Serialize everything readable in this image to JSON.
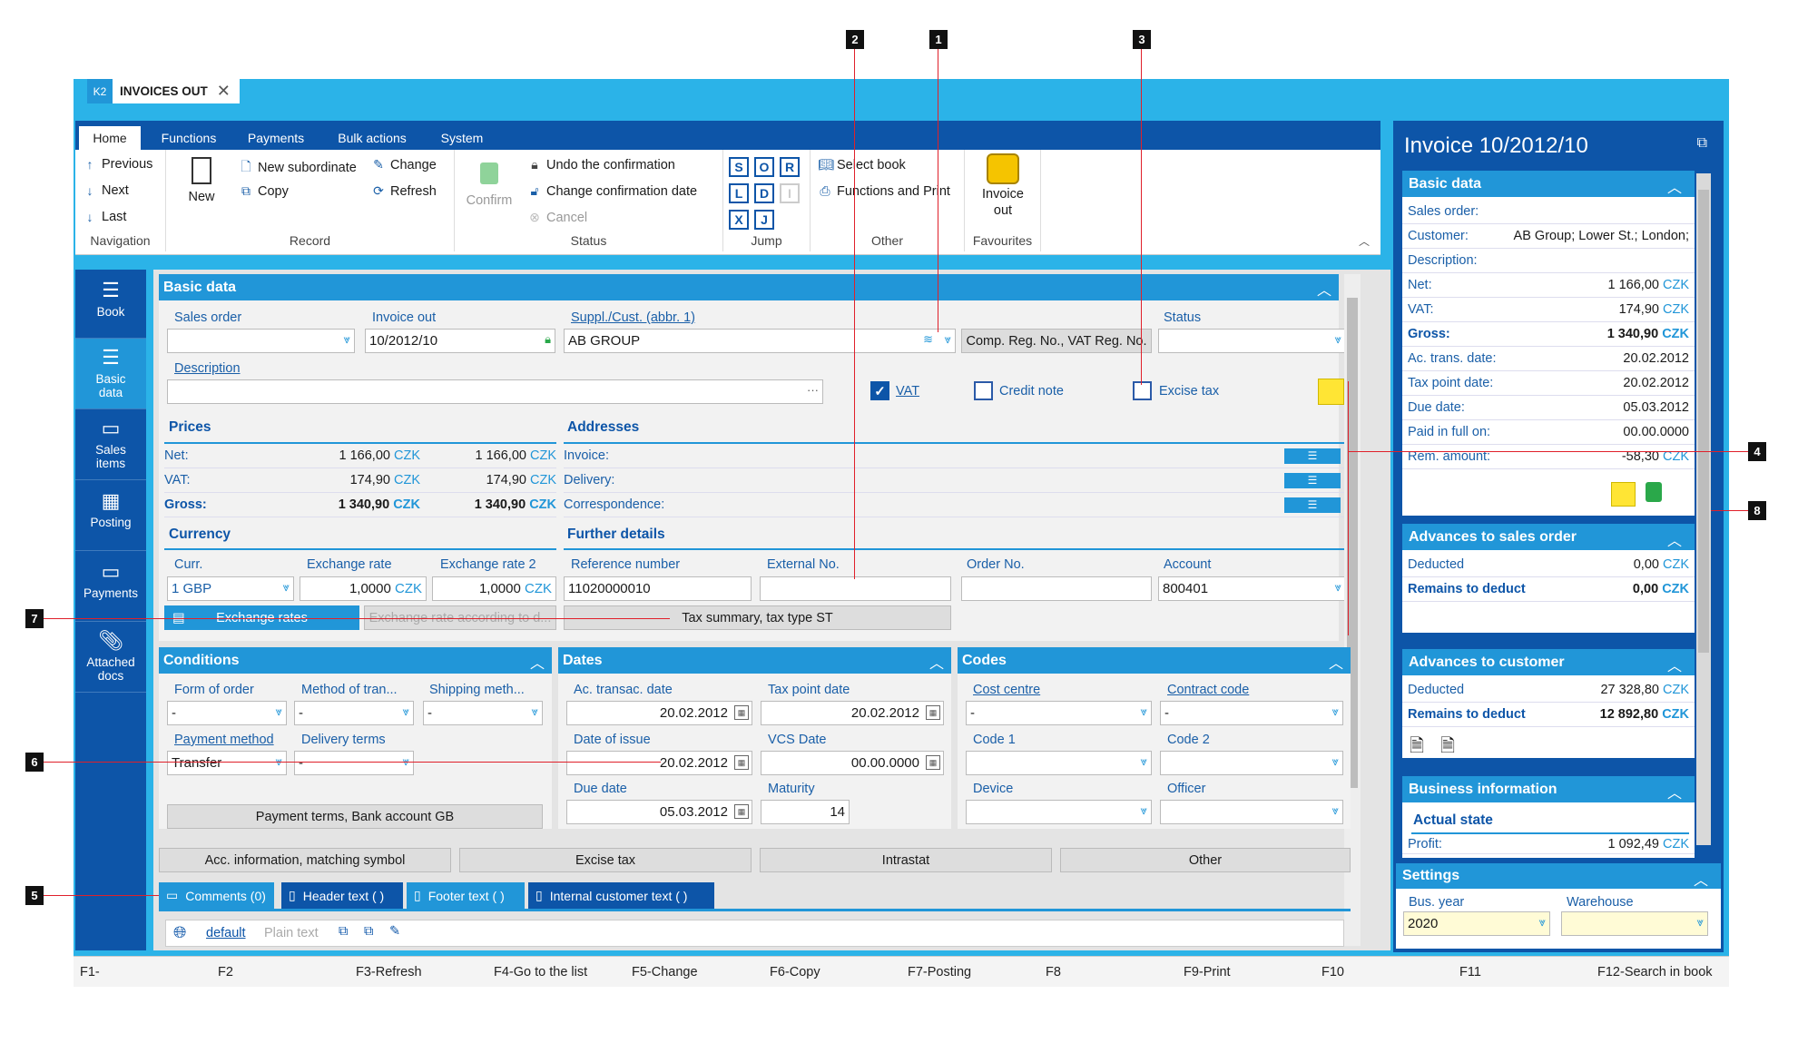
{
  "tab": {
    "k2": "K2",
    "title": "INVOICES OUT",
    "close": "✕"
  },
  "menu": [
    "Home",
    "Functions",
    "Payments",
    "Bulk actions",
    "System"
  ],
  "ribbon": {
    "nav": {
      "previous": "Previous",
      "next": "Next",
      "last": "Last",
      "label": "Navigation"
    },
    "record": {
      "new": "New",
      "new_sub": "New subordinate",
      "copy": "Copy",
      "change": "Change",
      "refresh": "Refresh",
      "label": "Record"
    },
    "status": {
      "confirm": "Confirm",
      "undo": "Undo the confirmation",
      "change_date": "Change confirmation date",
      "cancel": "Cancel",
      "label": "Status"
    },
    "jump": {
      "keys": [
        "S",
        "O",
        "R",
        "L",
        "D",
        "I",
        "X",
        "J"
      ],
      "label": "Jump"
    },
    "other": {
      "select_book": "Select book",
      "func_print": "Functions and Print",
      "label": "Other"
    },
    "fav": {
      "item_line1": "Invoice",
      "item_line2": "out",
      "label": "Favourites"
    }
  },
  "sidebar": [
    {
      "label1": "Book",
      "label2": ""
    },
    {
      "label1": "Basic",
      "label2": "data"
    },
    {
      "label1": "Sales",
      "label2": "items"
    },
    {
      "label1": "Posting",
      "label2": ""
    },
    {
      "label1": "Payments",
      "label2": ""
    },
    {
      "label1": "Attached",
      "label2": "docs"
    }
  ],
  "basic": {
    "title": "Basic data",
    "sales_order": {
      "label": "Sales order",
      "value": ""
    },
    "invoice_out": {
      "label": "Invoice out",
      "value": "10/2012/10"
    },
    "supplier": {
      "label": "Suppl./Cust. (abbr. 1)",
      "value": "AB GROUP"
    },
    "comp_btn": "Comp. Reg. No., VAT Reg. No.",
    "status": {
      "label": "Status",
      "value": ""
    },
    "description": {
      "label": "Description",
      "value": "···"
    },
    "vat": "VAT",
    "credit_note": "Credit note",
    "excise": "Excise tax"
  },
  "prices": {
    "title": "Prices",
    "rows": [
      {
        "k": "Net:",
        "v1": "1 166,00",
        "v2": "1 166,00",
        "cur": "CZK",
        "bold": false
      },
      {
        "k": "VAT:",
        "v1": "174,90",
        "v2": "174,90",
        "cur": "CZK",
        "bold": false
      },
      {
        "k": "Gross:",
        "v1": "1 340,90",
        "v2": "1 340,90",
        "cur": "CZK",
        "bold": true
      }
    ]
  },
  "addresses": {
    "title": "Addresses",
    "rows": [
      "Invoice:",
      "Delivery:",
      "Correspondence:"
    ]
  },
  "currency": {
    "title": "Currency",
    "curr_label": "Curr.",
    "curr": "1 GBP",
    "rate_label": "Exchange rate",
    "rate": "1,0000",
    "rate_cur": "CZK",
    "rate2_label": "Exchange rate 2",
    "rate2": "1,0000",
    "rate2_cur": "CZK",
    "btn_rates": "Exchange rates",
    "btn_rate_acc": "Exchange rate according to d..."
  },
  "further": {
    "title": "Further details",
    "ref_label": "Reference number",
    "ref": "11020000010",
    "ext_label": "External No.",
    "ext": "",
    "order_label": "Order No.",
    "order": "",
    "acc_label": "Account",
    "acc": "800401",
    "tax_btn": "Tax summary, tax type ST"
  },
  "conditions": {
    "title": "Conditions",
    "form_label": "Form of order",
    "form": "-",
    "method_label": "Method of tran...",
    "method": "-",
    "ship_label": "Shipping meth...",
    "ship": "-",
    "pay_label": "Payment method",
    "pay": "Transfer",
    "deliv_label": "Delivery terms",
    "deliv": "-",
    "btn": "Payment terms, Bank account GB"
  },
  "dates": {
    "title": "Dates",
    "ac_label": "Ac. transac. date",
    "ac": "20.02.2012",
    "tp_label": "Tax point date",
    "tp": "20.02.2012",
    "issue_label": "Date of issue",
    "issue": "20.02.2012",
    "vcs_label": "VCS Date",
    "vcs": "00.00.0000",
    "due_label": "Due date",
    "due": "05.03.2012",
    "mat_label": "Maturity",
    "mat": "14"
  },
  "codes": {
    "title": "Codes",
    "cc_label": "Cost centre",
    "cc": "-",
    "contract_label": "Contract code",
    "contract": "-",
    "c1_label": "Code 1",
    "c1": "",
    "c2_label": "Code 2",
    "c2": "",
    "dev_label": "Device",
    "dev": "",
    "off_label": "Officer",
    "off": ""
  },
  "bottom_btns": [
    "Acc. information, matching symbol",
    "Excise tax",
    "Intrastat",
    "Other"
  ],
  "note_tabs": [
    "Comments (0)",
    "Header text ( )",
    "Footer text ( )",
    "Internal customer text ( )"
  ],
  "editor": {
    "style": "default",
    "mode": "Plain text"
  },
  "right": {
    "title": "Invoice 10/2012/10",
    "basic_title": "Basic data",
    "rows": [
      {
        "k": "Sales order:",
        "v": "",
        "c": ""
      },
      {
        "k": "Customer:",
        "v": "AB Group; Lower St.; London;",
        "c": ""
      },
      {
        "k": "Description:",
        "v": "",
        "c": ""
      },
      {
        "k": "Net:",
        "v": "1 166,00",
        "c": "CZK"
      },
      {
        "k": "VAT:",
        "v": "174,90",
        "c": "CZK"
      },
      {
        "k": "Gross:",
        "v": "1 340,90",
        "c": "CZK"
      },
      {
        "k": "Ac. trans. date:",
        "v": "20.02.2012",
        "c": ""
      },
      {
        "k": "Tax point date:",
        "v": "20.02.2012",
        "c": ""
      },
      {
        "k": "Due date:",
        "v": "05.03.2012",
        "c": ""
      },
      {
        "k": "Paid in full on:",
        "v": "00.00.0000",
        "c": ""
      },
      {
        "k": "Rem. amount:",
        "v": "-58,30",
        "c": "CZK"
      }
    ],
    "adv_order_title": "Advances to sales order",
    "adv_order": [
      {
        "k": "Deducted",
        "v": "0,00",
        "c": "CZK"
      },
      {
        "k": "Remains to deduct",
        "v": "0,00",
        "c": "CZK"
      }
    ],
    "adv_cust_title": "Advances to customer",
    "adv_cust": [
      {
        "k": "Deducted",
        "v": "27 328,80",
        "c": "CZK"
      },
      {
        "k": "Remains to deduct",
        "v": "12 892,80",
        "c": "CZK"
      }
    ],
    "biz_title": "Business information",
    "actual": "Actual state",
    "profit": {
      "k": "Profit:",
      "v": "1 092,49",
      "c": "CZK"
    },
    "settings_title": "Settings",
    "year_label": "Bus. year",
    "year": "2020",
    "wh_label": "Warehouse",
    "wh": ""
  },
  "fkeys": [
    "F1-",
    "F2",
    "F3-Refresh",
    "F4-Go to the list",
    "F5-Change",
    "F6-Copy",
    "F7-Posting",
    "F8",
    "F9-Print",
    "F10",
    "F11",
    "F12-Search in book"
  ],
  "callouts": [
    "1",
    "2",
    "3",
    "4",
    "5",
    "6",
    "7",
    "8"
  ]
}
